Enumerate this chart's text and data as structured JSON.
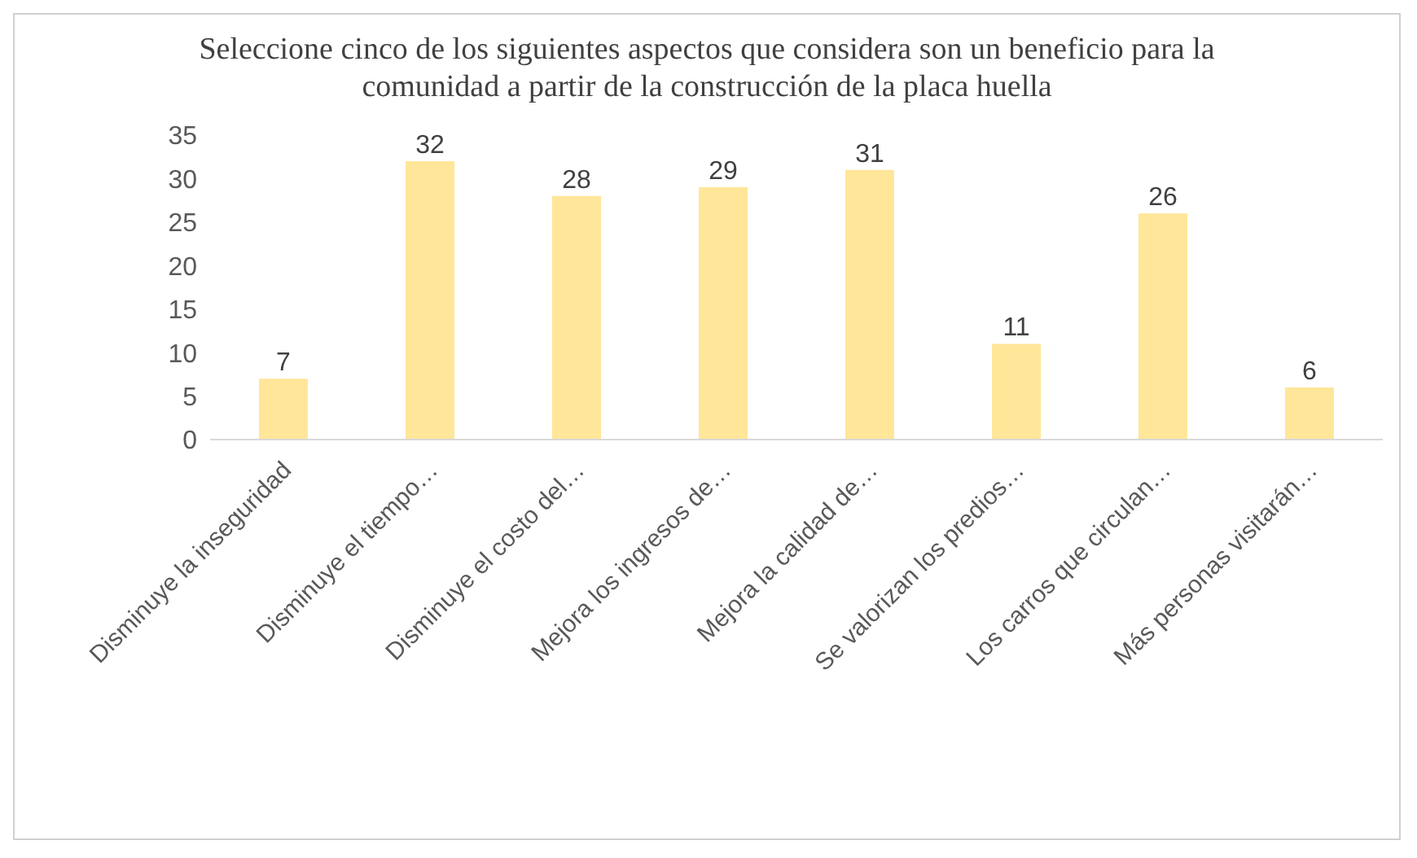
{
  "chart_data": {
    "type": "bar",
    "title": "Seleccione cinco de los siguientes aspectos que considera son un beneficio para la comunidad a partir de la construcción de la placa huella",
    "categories": [
      "Disminuye la inseguridad",
      "Disminuye el tiempo…",
      "Disminuye el costo del…",
      "Mejora los ingresos de…",
      "Mejora la calidad de…",
      "Se valorizan los predios…",
      "Los carros que circulan…",
      "Más personas visitarán…"
    ],
    "values": [
      7,
      32,
      28,
      29,
      31,
      11,
      26,
      6
    ],
    "color": "#ffe699",
    "ylim": [
      0,
      35
    ],
    "yticks": [
      0,
      5,
      10,
      15,
      20,
      25,
      30,
      35
    ],
    "grid": false,
    "legend": false,
    "data_labels": true
  }
}
